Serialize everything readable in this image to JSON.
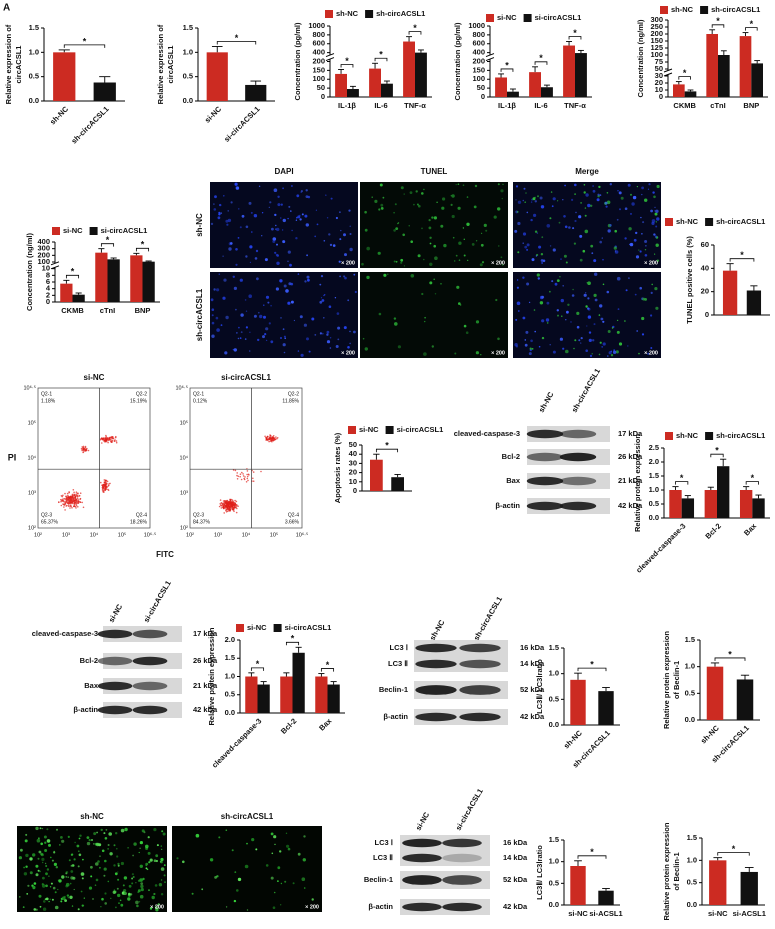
{
  "panel_label": "A",
  "chart_data": [
    {
      "type": "bar",
      "categories": [
        "sh-NC",
        "sh-circACSL1"
      ],
      "values": [
        1.0,
        0.38
      ],
      "errors": [
        0.05,
        0.12
      ],
      "colors": [
        "#cc2b22",
        "#111111"
      ],
      "y_label": [
        "Relative expression of",
        "circACSL1"
      ],
      "ylim": [
        0,
        1.5
      ],
      "yticks": [
        {
          "value": 0,
          "label": "0.0"
        },
        0.5,
        {
          "value": 1,
          "label": "1.0"
        },
        1.5
      ],
      "significance": [
        "*"
      ]
    },
    {
      "type": "bar",
      "categories": [
        "si-NC",
        "si-circACSL1"
      ],
      "values": [
        1.0,
        0.33
      ],
      "errors": [
        0.12,
        0.08
      ],
      "colors": [
        "#cc2b22",
        "#111111"
      ],
      "y_label": [
        "Relative expression of",
        "circACSL1"
      ],
      "ylim": [
        0,
        1.5
      ],
      "yticks": [
        {
          "value": 0,
          "label": "0.0"
        },
        0.5,
        {
          "value": 1,
          "label": "1.0"
        },
        1.5
      ],
      "significance": [
        "*"
      ]
    },
    {
      "type": "bar",
      "categories": [
        "IL-1β",
        "IL-6",
        "TNF-α"
      ],
      "series": [
        {
          "name": "sh-NC",
          "color": "#cc2b22",
          "values": [
            130,
            160,
            650
          ],
          "errors": [
            25,
            30,
            110
          ]
        },
        {
          "name": "sh-circACSL1",
          "color": "#111111",
          "values": [
            45,
            75,
            400
          ],
          "errors": [
            15,
            15,
            60
          ]
        }
      ],
      "y_label": [
        "Concentration (pg/ml)"
      ],
      "ylim": [
        0,
        1000
      ],
      "yticks": [
        0,
        50,
        100,
        150,
        200,
        400,
        600,
        800,
        1000
      ],
      "broken_axis": true,
      "legend": "top",
      "significance": [
        "*",
        "*",
        "*"
      ]
    },
    {
      "type": "bar",
      "categories": [
        "IL-1β",
        "IL-6",
        "TNF-α"
      ],
      "series": [
        {
          "name": "si-NC",
          "color": "#cc2b22",
          "values": [
            110,
            140,
            560
          ],
          "errors": [
            20,
            30,
            90
          ]
        },
        {
          "name": "si-circACSL1",
          "color": "#111111",
          "values": [
            30,
            55,
            390
          ],
          "errors": [
            15,
            12,
            60
          ]
        }
      ],
      "y_label": [
        "Concentration (pg/ml)"
      ],
      "ylim": [
        0,
        1000
      ],
      "yticks": [
        0,
        50,
        100,
        150,
        200,
        400,
        600,
        800,
        1000
      ],
      "broken_axis": true,
      "legend": "top",
      "significance": [
        "*",
        "*",
        "*"
      ]
    },
    {
      "type": "bar",
      "categories": [
        "CKMB",
        "cTnI",
        "BNP"
      ],
      "series": [
        {
          "name": "sh-NC",
          "color": "#cc2b22",
          "values": [
            18,
            200,
            185
          ],
          "errors": [
            4,
            30,
            25
          ]
        },
        {
          "name": "sh-circACSL1",
          "color": "#111111",
          "values": [
            8,
            100,
            70
          ],
          "errors": [
            2,
            15,
            10
          ]
        }
      ],
      "y_label": [
        "Concentration (ng/ml)"
      ],
      "ylim": [
        0,
        300
      ],
      "yticks": [
        0,
        10,
        20,
        30,
        50,
        75,
        100,
        125,
        150,
        200,
        250,
        300
      ],
      "broken_axis": true,
      "legend": "top",
      "significance": [
        "*",
        "*",
        "*"
      ]
    },
    {
      "type": "bar",
      "categories": [
        "CKMB",
        "cTnI",
        "BNP"
      ],
      "series": [
        {
          "name": "si-NC",
          "color": "#cc2b22",
          "values": [
            5.5,
            240,
            200
          ],
          "errors": [
            1,
            60,
            30
          ]
        },
        {
          "name": "si-circACSL1",
          "color": "#111111",
          "values": [
            2.2,
            140,
            105
          ],
          "errors": [
            0.5,
            20,
            10
          ]
        }
      ],
      "y_label": [
        "Concentration (ng/ml)"
      ],
      "ylim": [
        0,
        400
      ],
      "yticks": [
        0,
        2,
        4,
        6,
        8,
        10,
        100,
        200,
        300,
        400
      ],
      "broken_axis": true,
      "legend": "top",
      "significance": [
        "*",
        "*",
        "*"
      ]
    },
    {
      "type": "bar",
      "series": [
        {
          "name": "sh-NC",
          "color": "#cc2b22",
          "values": [
            38
          ],
          "errors": [
            6
          ]
        },
        {
          "name": "sh-circACSL1",
          "color": "#111111",
          "values": [
            21
          ],
          "errors": [
            4
          ]
        }
      ],
      "y_label": [
        "TUNEL positive cells (%)"
      ],
      "ylim": [
        0,
        60
      ],
      "yticks": [
        0,
        20,
        40,
        60
      ],
      "legend": "top",
      "significance": [
        "*"
      ]
    },
    {
      "type": "bar",
      "series": [
        {
          "name": "si-NC",
          "color": "#cc2b22",
          "values": [
            34
          ],
          "errors": [
            6
          ]
        },
        {
          "name": "si-circACSL1",
          "color": "#111111",
          "values": [
            15
          ],
          "errors": [
            3
          ]
        }
      ],
      "y_label": [
        "Apoptosis rates (%)"
      ],
      "ylim": [
        0,
        50
      ],
      "yticks": [
        0,
        10,
        20,
        30,
        40,
        50
      ],
      "legend": "top",
      "significance": [
        "*"
      ]
    },
    {
      "type": "bar",
      "categories": [
        "cleaved-caspase-3",
        "Bcl-2",
        "Bax"
      ],
      "series": [
        {
          "name": "sh-NC",
          "color": "#cc2b22",
          "values": [
            1.0,
            1.0,
            1.0
          ],
          "errors": [
            0.12,
            0.1,
            0.12
          ]
        },
        {
          "name": "sh-circACSL1",
          "color": "#111111",
          "values": [
            0.7,
            1.85,
            0.7
          ],
          "errors": [
            0.1,
            0.25,
            0.12
          ]
        }
      ],
      "y_label": [
        "Relative protein expression"
      ],
      "ylim": [
        0,
        2.5
      ],
      "yticks": [
        {
          "value": 0,
          "label": "0.0"
        },
        0.5,
        {
          "value": 1,
          "label": "1.0"
        },
        1.5,
        {
          "value": 2,
          "label": "2.0"
        },
        2.5
      ],
      "legend": "top",
      "significance": [
        "*",
        "*",
        "*"
      ]
    },
    {
      "type": "bar",
      "categories": [
        "cleaved-caspase-3",
        "Bcl-2",
        "Bax"
      ],
      "series": [
        {
          "name": "si-NC",
          "color": "#cc2b22",
          "values": [
            1.0,
            1.0,
            1.0
          ],
          "errors": [
            0.1,
            0.1,
            0.08
          ]
        },
        {
          "name": "si-circACSL1",
          "color": "#111111",
          "values": [
            0.78,
            1.65,
            0.78
          ],
          "errors": [
            0.08,
            0.15,
            0.08
          ]
        }
      ],
      "y_label": [
        "Relative protein expression"
      ],
      "ylim": [
        0,
        2.0
      ],
      "yticks": [
        {
          "value": 0,
          "label": "0.0"
        },
        0.5,
        {
          "value": 1,
          "label": "1.0"
        },
        1.5,
        {
          "value": 2,
          "label": "2.0"
        }
      ],
      "legend": "top",
      "significance": [
        "*",
        "*",
        "*"
      ]
    },
    {
      "type": "bar",
      "categories": [
        "sh-NC",
        "sh-circACSL1"
      ],
      "values": [
        0.88,
        0.66
      ],
      "errors": [
        0.13,
        0.07
      ],
      "colors": [
        "#cc2b22",
        "#111111"
      ],
      "y_label": [
        "LC3Ⅱ/ LC3Ⅰratio"
      ],
      "ylim": [
        0,
        1.5
      ],
      "yticks": [
        {
          "value": 0,
          "label": "0.0"
        },
        0.5,
        {
          "value": 1,
          "label": "1.0"
        },
        1.5
      ],
      "significance": [
        "*"
      ]
    },
    {
      "type": "bar",
      "categories": [
        "sh-NC",
        "sh-circACSL1"
      ],
      "values": [
        1.0,
        0.76
      ],
      "errors": [
        0.07,
        0.08
      ],
      "colors": [
        "#cc2b22",
        "#111111"
      ],
      "y_label": [
        "Relative protein expression",
        "of Beclin-1"
      ],
      "ylim": [
        0,
        1.5
      ],
      "yticks": [
        {
          "value": 0,
          "label": "0.0"
        },
        0.5,
        {
          "value": 1,
          "label": "1.0"
        },
        1.5
      ],
      "significance": [
        "*"
      ]
    },
    {
      "type": "bar",
      "categories": [
        "si-NC",
        "si-ACSL1"
      ],
      "values": [
        0.9,
        0.33
      ],
      "errors": [
        0.12,
        0.05
      ],
      "colors": [
        "#cc2b22",
        "#111111"
      ],
      "y_label": [
        "LC3Ⅱ/ LC3Ⅰratio"
      ],
      "ylim": [
        0,
        1.5
      ],
      "yticks": [
        {
          "value": 0,
          "label": "0.0"
        },
        0.5,
        {
          "value": 1,
          "label": "1.0"
        },
        1.5
      ],
      "significance": [
        "*"
      ]
    },
    {
      "type": "bar",
      "categories": [
        "si-NC",
        "si-ACSL1"
      ],
      "values": [
        1.0,
        0.74
      ],
      "errors": [
        0.06,
        0.1
      ],
      "colors": [
        "#cc2b22",
        "#111111"
      ],
      "y_label": [
        "Relative protein expression",
        "of Beclin-1"
      ],
      "ylim": [
        0,
        1.5
      ],
      "yticks": [
        {
          "value": 0,
          "label": "0.0"
        },
        0.5,
        {
          "value": 1,
          "label": "1.0"
        },
        1.5
      ],
      "significance": [
        "*"
      ]
    }
  ],
  "tunel_images": {
    "columns": [
      "DAPI",
      "TUNEL",
      "Merge"
    ],
    "rows": [
      "sh-NC",
      "sh-circACSL1"
    ],
    "magnification": [
      "× 200",
      "× 200",
      "× 200",
      "× 200",
      "× 200",
      "× 200"
    ]
  },
  "flow_cytometry": {
    "y_label": "PI",
    "x_label": "FITC",
    "plots": [
      {
        "title": "si-NC",
        "quadrants": [
          {
            "name": "Q2-1",
            "percent": "1.18%"
          },
          {
            "name": "Q2-2",
            "percent": "15.19%"
          },
          {
            "name": "Q2-3",
            "percent": "65.37%"
          },
          {
            "name": "Q2-4",
            "percent": "18.26%"
          }
        ],
        "x_ticks": [
          "10²",
          "10³",
          "10⁴",
          "10⁵",
          "10⁶·⁵"
        ],
        "y_ticks": [
          "10²",
          "10³",
          "10⁴",
          "10⁵",
          "10⁶·⁵"
        ]
      },
      {
        "title": "si-circACSL1",
        "quadrants": [
          {
            "name": "Q2-1",
            "percent": "0.12%"
          },
          {
            "name": "Q2-2",
            "percent": "11.85%"
          },
          {
            "name": "Q2-3",
            "percent": "84.37%"
          },
          {
            "name": "Q2-4",
            "percent": "3.66%"
          }
        ],
        "x_ticks": [
          "10²",
          "10³",
          "10⁴",
          "10⁵",
          "10⁶·⁵"
        ],
        "y_ticks": [
          "10²",
          "10³",
          "10⁴",
          "10⁵",
          "10⁶·⁵"
        ]
      }
    ]
  },
  "blots": [
    {
      "columns": [
        "sh-NC",
        "sh-circACSL1"
      ],
      "rows": [
        {
          "label": "cleaved-caspase-3",
          "kda": "17 kDa"
        },
        {
          "label": "Bcl-2",
          "kda": "26 kDa"
        },
        {
          "label": "Bax",
          "kda": "21 kDa"
        },
        {
          "label": "β-actin",
          "kda": "42 kDa"
        }
      ]
    },
    {
      "columns": [
        "si-NC",
        "si-circACSL1"
      ],
      "rows": [
        {
          "label": "cleaved-caspase-3",
          "kda": "17 kDa"
        },
        {
          "label": "Bcl-2",
          "kda": "26 kDa"
        },
        {
          "label": "Bax",
          "kda": "21 kDa"
        },
        {
          "label": "β-actin",
          "kda": "42 kDa"
        }
      ]
    },
    {
      "columns": [
        "sh-NC",
        "sh-circACSL1"
      ],
      "rows": [
        {
          "label": "LC3 Ⅰ",
          "kda": "16 kDa"
        },
        {
          "label": "LC3 Ⅱ",
          "kda": "14 kDa"
        },
        {
          "label": "Beclin-1",
          "kda": "52 kDa"
        },
        {
          "label": "β-actin",
          "kda": "42 kDa"
        }
      ]
    },
    {
      "columns": [
        "si-NC",
        "si-circACSL1"
      ],
      "rows": [
        {
          "label": "LC3 Ⅰ",
          "kda": "16 kDa"
        },
        {
          "label": "LC3 Ⅱ",
          "kda": "14 kDa"
        },
        {
          "label": "Beclin-1",
          "kda": "52 kDa"
        },
        {
          "label": "β-actin",
          "kda": "42 kDa"
        }
      ]
    }
  ],
  "fluorescence": {
    "titles": [
      "sh-NC",
      "sh-circACSL1"
    ],
    "magnification": [
      "× 200",
      "× 200"
    ]
  }
}
